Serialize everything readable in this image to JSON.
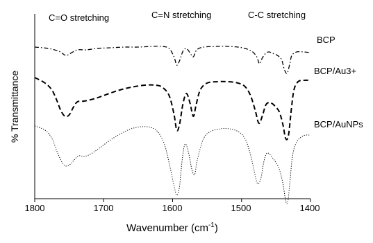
{
  "chart_data": {
    "type": "line",
    "title": "",
    "xlabel": "Wavenumber (cm",
    "xlabel_sup": "-1",
    "xlabel_close": ")",
    "ylabel": "% Transmittance",
    "xlim": [
      1800,
      1400
    ],
    "x_reversed": true,
    "x_ticks": [
      1800,
      1700,
      1600,
      1500,
      1400
    ],
    "x_tick_labels": [
      "1800",
      "1700",
      "1600",
      "1500",
      "1400"
    ],
    "grid": false,
    "legend": "inline labels at right end of each curve",
    "annotations": [
      "C=O stretching",
      "C=N stretching",
      "C-C stretching"
    ],
    "series": [
      {
        "name": "BCP",
        "line_style": "dash-dot",
        "color": "#000000",
        "points": [
          [
            1800,
            48
          ],
          [
            1780,
            50
          ],
          [
            1765,
            54
          ],
          [
            1755,
            60
          ],
          [
            1748,
            57
          ],
          [
            1738,
            52
          ],
          [
            1725,
            52
          ],
          [
            1710,
            50
          ],
          [
            1690,
            49
          ],
          [
            1670,
            48
          ],
          [
            1650,
            48
          ],
          [
            1630,
            47
          ],
          [
            1615,
            47
          ],
          [
            1605,
            50
          ],
          [
            1598,
            62
          ],
          [
            1594,
            74
          ],
          [
            1590,
            68
          ],
          [
            1585,
            54
          ],
          [
            1580,
            50
          ],
          [
            1575,
            56
          ],
          [
            1570,
            62
          ],
          [
            1565,
            52
          ],
          [
            1555,
            48
          ],
          [
            1535,
            47
          ],
          [
            1520,
            47
          ],
          [
            1505,
            48
          ],
          [
            1495,
            50
          ],
          [
            1485,
            54
          ],
          [
            1478,
            62
          ],
          [
            1474,
            72
          ],
          [
            1470,
            64
          ],
          [
            1465,
            57
          ],
          [
            1460,
            55
          ],
          [
            1455,
            57
          ],
          [
            1448,
            60
          ],
          [
            1442,
            66
          ],
          [
            1438,
            80
          ],
          [
            1434,
            86
          ],
          [
            1430,
            72
          ],
          [
            1427,
            60
          ],
          [
            1420,
            55
          ],
          [
            1410,
            55
          ],
          [
            1400,
            56
          ]
        ]
      },
      {
        "name": "BCP/Au3+",
        "line_style": "dashed",
        "color": "#000000",
        "points": [
          [
            1800,
            92
          ],
          [
            1785,
            100
          ],
          [
            1775,
            110
          ],
          [
            1768,
            125
          ],
          [
            1762,
            140
          ],
          [
            1756,
            148
          ],
          [
            1750,
            146
          ],
          [
            1744,
            135
          ],
          [
            1738,
            127
          ],
          [
            1728,
            126
          ],
          [
            1715,
            123
          ],
          [
            1700,
            118
          ],
          [
            1680,
            111
          ],
          [
            1660,
            106
          ],
          [
            1640,
            103
          ],
          [
            1625,
            103
          ],
          [
            1615,
            106
          ],
          [
            1605,
            118
          ],
          [
            1598,
            145
          ],
          [
            1594,
            168
          ],
          [
            1590,
            160
          ],
          [
            1585,
            130
          ],
          [
            1580,
            115
          ],
          [
            1575,
            128
          ],
          [
            1570,
            148
          ],
          [
            1566,
            132
          ],
          [
            1560,
            110
          ],
          [
            1550,
            100
          ],
          [
            1535,
            98
          ],
          [
            1520,
            98
          ],
          [
            1505,
            100
          ],
          [
            1495,
            105
          ],
          [
            1487,
            118
          ],
          [
            1480,
            140
          ],
          [
            1475,
            158
          ],
          [
            1470,
            148
          ],
          [
            1465,
            132
          ],
          [
            1460,
            128
          ],
          [
            1455,
            130
          ],
          [
            1450,
            135
          ],
          [
            1445,
            142
          ],
          [
            1440,
            160
          ],
          [
            1436,
            180
          ],
          [
            1432,
            176
          ],
          [
            1428,
            140
          ],
          [
            1424,
            110
          ],
          [
            1418,
            98
          ],
          [
            1410,
            96
          ],
          [
            1400,
            96
          ]
        ]
      },
      {
        "name": "BCP/AuNPs",
        "line_style": "dotted",
        "color": "#000000",
        "points": [
          [
            1800,
            162
          ],
          [
            1785,
            168
          ],
          [
            1775,
            180
          ],
          [
            1768,
            198
          ],
          [
            1760,
            215
          ],
          [
            1754,
            220
          ],
          [
            1748,
            217
          ],
          [
            1742,
            210
          ],
          [
            1736,
            205
          ],
          [
            1728,
            206
          ],
          [
            1718,
            202
          ],
          [
            1705,
            193
          ],
          [
            1690,
            182
          ],
          [
            1675,
            173
          ],
          [
            1660,
            166
          ],
          [
            1645,
            163
          ],
          [
            1632,
            164
          ],
          [
            1622,
            170
          ],
          [
            1612,
            188
          ],
          [
            1604,
            220
          ],
          [
            1598,
            248
          ],
          [
            1594,
            262
          ],
          [
            1590,
            250
          ],
          [
            1586,
            210
          ],
          [
            1582,
            188
          ],
          [
            1577,
            200
          ],
          [
            1572,
            225
          ],
          [
            1568,
            232
          ],
          [
            1564,
            210
          ],
          [
            1555,
            180
          ],
          [
            1545,
            170
          ],
          [
            1530,
            166
          ],
          [
            1518,
            166
          ],
          [
            1505,
            170
          ],
          [
            1495,
            180
          ],
          [
            1488,
            200
          ],
          [
            1482,
            225
          ],
          [
            1477,
            245
          ],
          [
            1472,
            238
          ],
          [
            1468,
            215
          ],
          [
            1464,
            202
          ],
          [
            1460,
            202
          ],
          [
            1455,
            208
          ],
          [
            1450,
            215
          ],
          [
            1445,
            225
          ],
          [
            1440,
            245
          ],
          [
            1436,
            270
          ],
          [
            1433,
            272
          ],
          [
            1430,
            245
          ],
          [
            1426,
            205
          ],
          [
            1420,
            185
          ],
          [
            1410,
            176
          ],
          [
            1400,
            175
          ]
        ]
      }
    ]
  }
}
